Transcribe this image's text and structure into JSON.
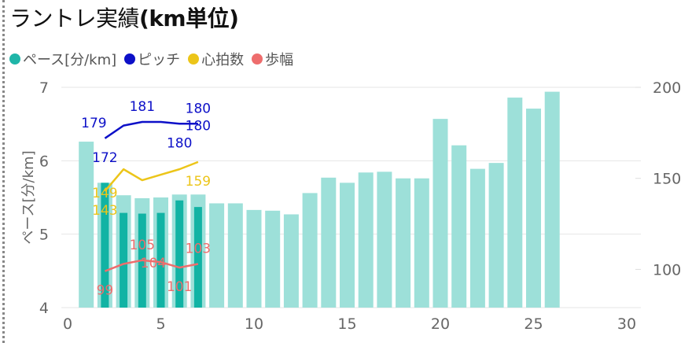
{
  "title": {
    "main": "ラントレ実績",
    "bold_part": "(km単位)"
  },
  "legend": [
    {
      "label": "ペース[分/km]",
      "color": "#1fb5a8"
    },
    {
      "label": "ピッチ",
      "color": "#0d10c8"
    },
    {
      "label": "心拍数",
      "color": "#ecc519"
    },
    {
      "label": "歩幅",
      "color": "#ee6d6d"
    }
  ],
  "chart_data": {
    "type": "bar",
    "title": "ラントレ実績(km単位)",
    "ylabel": "ペース[分/km]",
    "xlim": [
      0,
      30
    ],
    "ylim": [
      4,
      7
    ],
    "y2lim": [
      79,
      200
    ],
    "x_ticks": [
      "0",
      "5",
      "10",
      "15",
      "20",
      "25",
      "30"
    ],
    "y_ticks": [
      "4",
      "5",
      "6",
      "7"
    ],
    "y2_ticks": [
      "100",
      "150",
      "200"
    ],
    "grid": true,
    "legend_position": "top-left",
    "bar_color": "#9de0d9",
    "highlight_color": "#11b3a4",
    "pace": {
      "name": "ペース[分/km]",
      "x": [
        1,
        2,
        3,
        4,
        5,
        6,
        7,
        8,
        9,
        10,
        11,
        12,
        13,
        14,
        15,
        16,
        17,
        18,
        19,
        20,
        21,
        22,
        23,
        24,
        25,
        26
      ],
      "values": [
        6.26,
        5.7,
        5.53,
        5.49,
        5.5,
        5.54,
        5.54,
        5.42,
        5.42,
        5.33,
        5.32,
        5.27,
        5.56,
        5.77,
        5.7,
        5.84,
        5.85,
        5.76,
        5.76,
        6.57,
        6.21,
        5.89,
        5.97,
        6.86,
        6.71,
        6.94
      ]
    },
    "pace_highlight": {
      "x": [
        2,
        3,
        4,
        5,
        6,
        7
      ],
      "values": [
        5.7,
        5.29,
        5.28,
        5.29,
        5.46,
        5.37
      ]
    },
    "lines": [
      {
        "name": "ピッチ",
        "color": "#0d10c8",
        "x": [
          2,
          3,
          4,
          5,
          6,
          7
        ],
        "values": [
          172,
          179,
          181,
          181,
          180,
          180
        ],
        "labels": [
          {
            "x": 2,
            "text": "172",
            "pos": "below"
          },
          {
            "x": 2,
            "text": "179",
            "pos": "above-left"
          },
          {
            "x": 4,
            "text": "181",
            "pos": "above"
          },
          {
            "x": 6,
            "text": "180",
            "pos": "below"
          },
          {
            "x": 7,
            "text": "180",
            "pos": "on"
          },
          {
            "x": 7,
            "text": "180",
            "pos": "above"
          }
        ]
      },
      {
        "name": "心拍数",
        "color": "#ecc519",
        "x": [
          2,
          3,
          4,
          5,
          6,
          7
        ],
        "values": [
          143,
          155,
          149,
          152,
          155,
          159
        ],
        "labels": [
          {
            "x": 2,
            "text": "149",
            "pos": "on"
          },
          {
            "x": 2,
            "text": "143",
            "pos": "below"
          },
          {
            "x": 7,
            "text": "159",
            "pos": "below"
          }
        ]
      },
      {
        "name": "歩幅",
        "color": "#ee6d6d",
        "x": [
          2,
          3,
          4,
          5,
          6,
          7
        ],
        "values": [
          99,
          103,
          105,
          104,
          101,
          103
        ],
        "labels": [
          {
            "x": 2,
            "text": "99",
            "pos": "below"
          },
          {
            "x": 4,
            "text": "105",
            "pos": "above"
          },
          {
            "x": 4.6,
            "text": "104",
            "pos": "on"
          },
          {
            "x": 6,
            "text": "101",
            "pos": "below"
          },
          {
            "x": 7,
            "text": "103",
            "pos": "above"
          }
        ]
      }
    ]
  }
}
